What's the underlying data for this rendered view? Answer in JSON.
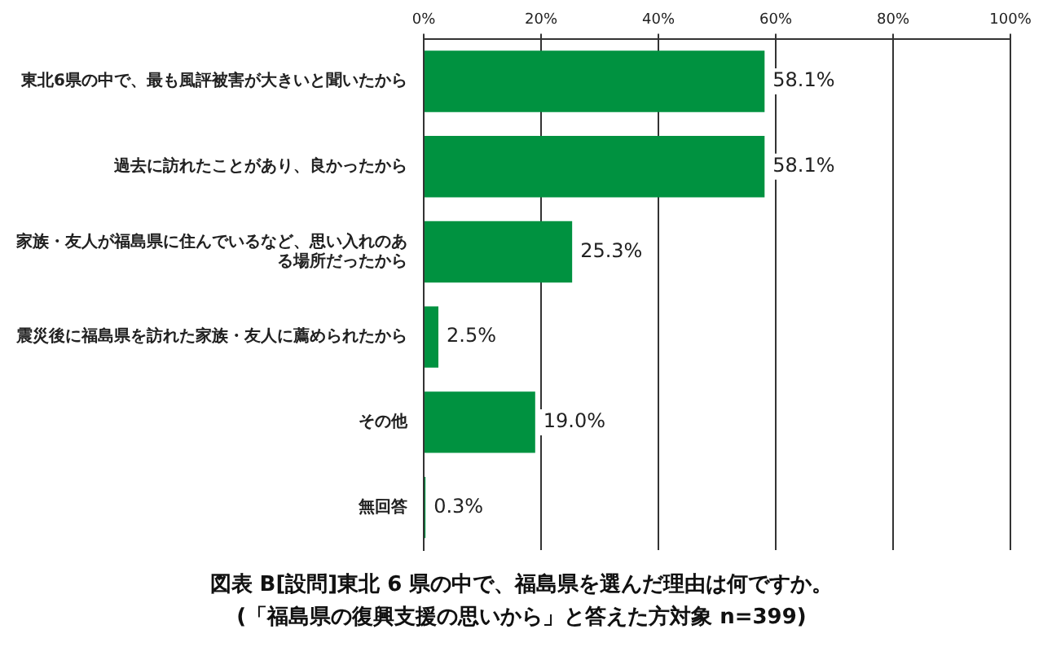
{
  "chart_data": {
    "type": "bar",
    "orientation": "horizontal",
    "title": "図表 B[設問]東北 6 県の中で、福島県を選んだ理由は何ですか。",
    "subtitle": "(「福島県の復興支援の思いから」と答えた方対象 n=399)",
    "categories": [
      "東北6県の中で、最も風評被害が大きいと聞いたから",
      "過去に訪れたことがあり、良かったから",
      "家族・友人が福島県に住んでいるなど、思い入れのある場所だったから",
      "震災後に福島県を訪れた家族・友人に薦められたから",
      "その他",
      "無回答"
    ],
    "values": [
      58.1,
      58.1,
      25.3,
      2.5,
      19.0,
      0.3
    ],
    "value_labels": [
      "58.1%",
      "58.1%",
      "25.3%",
      "2.5%",
      "19.0%",
      "0.3%"
    ],
    "color": "#009240",
    "xlim": [
      0,
      100
    ],
    "xticks": [
      {
        "value": 0,
        "label": "0%"
      },
      {
        "value": 20,
        "label": "20%"
      },
      {
        "value": 40,
        "label": "40%"
      },
      {
        "value": 60,
        "label": "60%"
      },
      {
        "value": 80,
        "label": "80%"
      },
      {
        "value": 100,
        "label": "100%"
      }
    ],
    "grid": "x",
    "legend": false
  }
}
